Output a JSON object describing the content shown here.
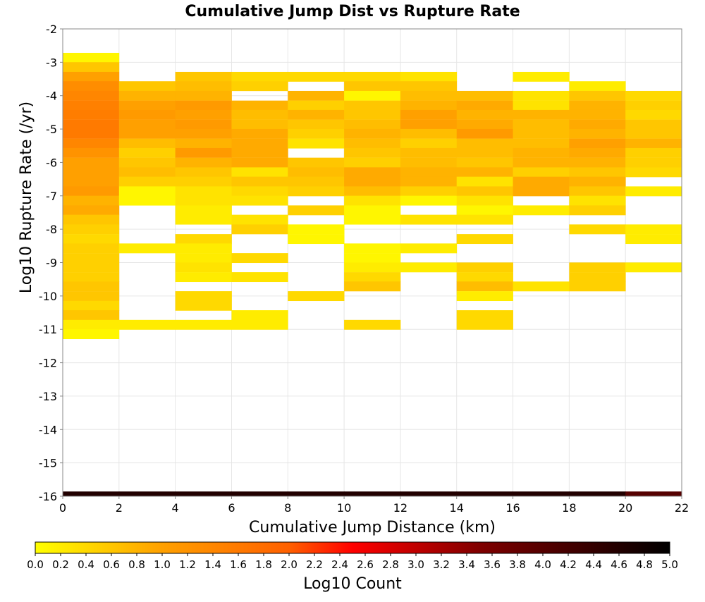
{
  "chart_data": {
    "type": "heatmap",
    "title": "Cumulative Jump Dist vs Rupture Rate",
    "xlabel": "Cumulative Jump Distance (km)",
    "ylabel": "Log10 Rupture Rate (/yr)",
    "xlim": [
      0,
      22
    ],
    "ylim": [
      -16,
      -2
    ],
    "x_ticks": [
      "0",
      "2",
      "4",
      "6",
      "8",
      "10",
      "12",
      "14",
      "16",
      "18",
      "20",
      "22"
    ],
    "y_ticks": [
      "-2",
      "-3",
      "-4",
      "-5",
      "-6",
      "-7",
      "-8",
      "-9",
      "-10",
      "-11",
      "-12",
      "-13",
      "-14",
      "-15",
      "-16"
    ],
    "grid": true,
    "x_bin_edges": [
      0,
      2,
      4,
      6,
      8,
      10,
      12,
      14,
      16,
      18,
      20,
      22
    ],
    "y_bin_size": 0.2857,
    "value_label": "Log10 Count",
    "colorbar": {
      "label": "Log10 Count",
      "range": [
        0,
        5
      ],
      "ticks": [
        "0.0",
        "0.2",
        "0.4",
        "0.6",
        "0.8",
        "1.0",
        "1.2",
        "1.4",
        "1.6",
        "1.8",
        "2.0",
        "2.2",
        "2.4",
        "2.6",
        "2.8",
        "3.0",
        "3.2",
        "3.4",
        "3.6",
        "3.8",
        "4.0",
        "4.2",
        "4.4",
        "4.6",
        "4.8",
        "5.0"
      ],
      "colors": [
        "#ffff00",
        "#ffa000",
        "#ff6000",
        "#ff0000",
        "#800000",
        "#000000"
      ]
    },
    "columns": [
      {
        "x": [
          0,
          2
        ],
        "cells": [
          {
            "y": -2.86,
            "v": 0.1
          },
          {
            "y": -3.14,
            "v": 0.6
          },
          {
            "y": -3.43,
            "v": 1.0
          },
          {
            "y": -3.71,
            "v": 1.3
          },
          {
            "y": -4.0,
            "v": 1.4
          },
          {
            "y": -4.29,
            "v": 1.5
          },
          {
            "y": -4.57,
            "v": 1.55
          },
          {
            "y": -4.86,
            "v": 1.6
          },
          {
            "y": -5.14,
            "v": 1.6
          },
          {
            "y": -5.43,
            "v": 1.4
          },
          {
            "y": -5.71,
            "v": 1.2
          },
          {
            "y": -6.0,
            "v": 1.0
          },
          {
            "y": -6.29,
            "v": 1.0
          },
          {
            "y": -6.57,
            "v": 1.0
          },
          {
            "y": -6.86,
            "v": 1.1
          },
          {
            "y": -7.14,
            "v": 0.8
          },
          {
            "y": -7.43,
            "v": 0.9
          },
          {
            "y": -7.71,
            "v": 0.6
          },
          {
            "y": -8.0,
            "v": 0.5
          },
          {
            "y": -8.29,
            "v": 0.4
          },
          {
            "y": -8.57,
            "v": 0.5
          },
          {
            "y": -8.86,
            "v": 0.5
          },
          {
            "y": -9.14,
            "v": 0.5
          },
          {
            "y": -9.43,
            "v": 0.5
          },
          {
            "y": -9.71,
            "v": 0.6
          },
          {
            "y": -10.0,
            "v": 0.6
          },
          {
            "y": -10.29,
            "v": 0.4
          },
          {
            "y": -10.57,
            "v": 0.6
          },
          {
            "y": -10.86,
            "v": 0.2
          },
          {
            "y": -11.14,
            "v": 0.1
          },
          {
            "y": -16.0,
            "v": 4.6
          }
        ]
      },
      {
        "x": [
          2,
          4
        ],
        "cells": [
          {
            "y": -3.71,
            "v": 0.6
          },
          {
            "y": -4.0,
            "v": 0.8
          },
          {
            "y": -4.29,
            "v": 1.0
          },
          {
            "y": -4.57,
            "v": 1.1
          },
          {
            "y": -4.86,
            "v": 1.0
          },
          {
            "y": -5.14,
            "v": 1.0
          },
          {
            "y": -5.43,
            "v": 0.7
          },
          {
            "y": -5.71,
            "v": 0.5
          },
          {
            "y": -6.0,
            "v": 0.6
          },
          {
            "y": -6.29,
            "v": 0.7
          },
          {
            "y": -6.57,
            "v": 0.5
          },
          {
            "y": -6.86,
            "v": 0.1
          },
          {
            "y": -7.14,
            "v": 0.1
          },
          {
            "y": -8.57,
            "v": 0.2
          },
          {
            "y": -10.86,
            "v": 0.2
          },
          {
            "y": -16.0,
            "v": 4.6
          }
        ]
      },
      {
        "x": [
          4,
          6
        ],
        "cells": [
          {
            "y": -3.43,
            "v": 0.6
          },
          {
            "y": -3.71,
            "v": 0.7
          },
          {
            "y": -4.0,
            "v": 0.8
          },
          {
            "y": -4.29,
            "v": 1.1
          },
          {
            "y": -4.57,
            "v": 1.0
          },
          {
            "y": -4.86,
            "v": 1.1
          },
          {
            "y": -5.14,
            "v": 1.0
          },
          {
            "y": -5.43,
            "v": 0.8
          },
          {
            "y": -5.71,
            "v": 1.1
          },
          {
            "y": -6.0,
            "v": 0.8
          },
          {
            "y": -6.29,
            "v": 0.6
          },
          {
            "y": -6.57,
            "v": 0.5
          },
          {
            "y": -6.86,
            "v": 0.3
          },
          {
            "y": -7.14,
            "v": 0.3
          },
          {
            "y": -7.43,
            "v": 0.2
          },
          {
            "y": -7.71,
            "v": 0.2
          },
          {
            "y": -8.29,
            "v": 0.4
          },
          {
            "y": -8.57,
            "v": 0.2
          },
          {
            "y": -8.86,
            "v": 0.2
          },
          {
            "y": -9.14,
            "v": 0.3
          },
          {
            "y": -9.43,
            "v": 0.2
          },
          {
            "y": -10.0,
            "v": 0.4
          },
          {
            "y": -10.29,
            "v": 0.4
          },
          {
            "y": -10.86,
            "v": 0.2
          },
          {
            "y": -16.0,
            "v": 4.6
          }
        ]
      },
      {
        "x": [
          6,
          8
        ],
        "cells": [
          {
            "y": -3.43,
            "v": 0.4
          },
          {
            "y": -3.71,
            "v": 0.5
          },
          {
            "y": -4.29,
            "v": 0.8
          },
          {
            "y": -4.57,
            "v": 0.7
          },
          {
            "y": -4.86,
            "v": 0.7
          },
          {
            "y": -5.14,
            "v": 0.9
          },
          {
            "y": -5.43,
            "v": 0.9
          },
          {
            "y": -5.71,
            "v": 0.9
          },
          {
            "y": -6.0,
            "v": 0.9
          },
          {
            "y": -6.29,
            "v": 0.3
          },
          {
            "y": -6.57,
            "v": 0.6
          },
          {
            "y": -6.86,
            "v": 0.4
          },
          {
            "y": -7.14,
            "v": 0.3
          },
          {
            "y": -7.71,
            "v": 0.3
          },
          {
            "y": -8.0,
            "v": 0.5
          },
          {
            "y": -8.86,
            "v": 0.4
          },
          {
            "y": -9.43,
            "v": 0.3
          },
          {
            "y": -10.57,
            "v": 0.2
          },
          {
            "y": -10.86,
            "v": 0.2
          },
          {
            "y": -16.0,
            "v": 4.6
          }
        ]
      },
      {
        "x": [
          8,
          10
        ],
        "cells": [
          {
            "y": -3.43,
            "v": 0.4
          },
          {
            "y": -4.0,
            "v": 0.8
          },
          {
            "y": -4.29,
            "v": 0.5
          },
          {
            "y": -4.57,
            "v": 0.8
          },
          {
            "y": -4.86,
            "v": 0.6
          },
          {
            "y": -5.14,
            "v": 0.5
          },
          {
            "y": -5.43,
            "v": 0.3
          },
          {
            "y": -6.0,
            "v": 0.6
          },
          {
            "y": -6.29,
            "v": 0.7
          },
          {
            "y": -6.57,
            "v": 0.6
          },
          {
            "y": -6.86,
            "v": 0.5
          },
          {
            "y": -7.43,
            "v": 0.5
          },
          {
            "y": -8.0,
            "v": 0.1
          },
          {
            "y": -8.29,
            "v": 0.1
          },
          {
            "y": -10.0,
            "v": 0.4
          },
          {
            "y": -16.0,
            "v": 4.6
          }
        ]
      },
      {
        "x": [
          10,
          12
        ],
        "cells": [
          {
            "y": -3.43,
            "v": 0.4
          },
          {
            "y": -3.71,
            "v": 0.6
          },
          {
            "y": -4.0,
            "v": 0.1
          },
          {
            "y": -4.29,
            "v": 0.6
          },
          {
            "y": -4.57,
            "v": 0.6
          },
          {
            "y": -4.86,
            "v": 0.7
          },
          {
            "y": -5.14,
            "v": 0.8
          },
          {
            "y": -5.43,
            "v": 0.7
          },
          {
            "y": -5.71,
            "v": 0.6
          },
          {
            "y": -6.0,
            "v": 0.5
          },
          {
            "y": -6.29,
            "v": 0.9
          },
          {
            "y": -6.57,
            "v": 0.9
          },
          {
            "y": -6.86,
            "v": 0.7
          },
          {
            "y": -7.14,
            "v": 0.3
          },
          {
            "y": -7.43,
            "v": 0.1
          },
          {
            "y": -7.71,
            "v": 0.1
          },
          {
            "y": -8.57,
            "v": 0.1
          },
          {
            "y": -8.86,
            "v": 0.1
          },
          {
            "y": -9.14,
            "v": 0.2
          },
          {
            "y": -9.43,
            "v": 0.4
          },
          {
            "y": -9.71,
            "v": 0.6
          },
          {
            "y": -10.86,
            "v": 0.4
          },
          {
            "y": -16.0,
            "v": 4.6
          }
        ]
      },
      {
        "x": [
          12,
          14
        ],
        "cells": [
          {
            "y": -3.43,
            "v": 0.3
          },
          {
            "y": -3.71,
            "v": 0.6
          },
          {
            "y": -4.0,
            "v": 0.7
          },
          {
            "y": -4.29,
            "v": 0.8
          },
          {
            "y": -4.57,
            "v": 1.0
          },
          {
            "y": -4.86,
            "v": 1.0
          },
          {
            "y": -5.14,
            "v": 0.7
          },
          {
            "y": -5.43,
            "v": 0.5
          },
          {
            "y": -5.71,
            "v": 0.7
          },
          {
            "y": -6.0,
            "v": 0.7
          },
          {
            "y": -6.29,
            "v": 0.8
          },
          {
            "y": -6.57,
            "v": 0.8
          },
          {
            "y": -6.86,
            "v": 0.5
          },
          {
            "y": -7.14,
            "v": 0.1
          },
          {
            "y": -7.71,
            "v": 0.3
          },
          {
            "y": -8.57,
            "v": 0.2
          },
          {
            "y": -9.14,
            "v": 0.2
          },
          {
            "y": -16.0,
            "v": 4.6
          }
        ]
      },
      {
        "x": [
          14,
          16
        ],
        "cells": [
          {
            "y": -4.0,
            "v": 0.7
          },
          {
            "y": -4.29,
            "v": 0.9
          },
          {
            "y": -4.57,
            "v": 0.8
          },
          {
            "y": -4.86,
            "v": 0.9
          },
          {
            "y": -5.14,
            "v": 1.1
          },
          {
            "y": -5.43,
            "v": 0.7
          },
          {
            "y": -5.71,
            "v": 0.7
          },
          {
            "y": -6.0,
            "v": 0.6
          },
          {
            "y": -6.29,
            "v": 0.8
          },
          {
            "y": -6.57,
            "v": 0.3
          },
          {
            "y": -6.86,
            "v": 0.6
          },
          {
            "y": -7.14,
            "v": 0.3
          },
          {
            "y": -7.43,
            "v": 0.1
          },
          {
            "y": -7.71,
            "v": 0.3
          },
          {
            "y": -8.29,
            "v": 0.4
          },
          {
            "y": -9.14,
            "v": 0.5
          },
          {
            "y": -9.43,
            "v": 0.4
          },
          {
            "y": -9.71,
            "v": 0.7
          },
          {
            "y": -10.0,
            "v": 0.2
          },
          {
            "y": -10.57,
            "v": 0.4
          },
          {
            "y": -10.86,
            "v": 0.4
          },
          {
            "y": -16.0,
            "v": 4.6
          }
        ]
      },
      {
        "x": [
          16,
          18
        ],
        "cells": [
          {
            "y": -3.43,
            "v": 0.2
          },
          {
            "y": -4.0,
            "v": 0.3
          },
          {
            "y": -4.29,
            "v": 0.3
          },
          {
            "y": -4.57,
            "v": 0.8
          },
          {
            "y": -4.86,
            "v": 0.7
          },
          {
            "y": -5.14,
            "v": 0.7
          },
          {
            "y": -5.43,
            "v": 0.7
          },
          {
            "y": -5.71,
            "v": 0.8
          },
          {
            "y": -6.0,
            "v": 0.8
          },
          {
            "y": -6.29,
            "v": 0.5
          },
          {
            "y": -6.57,
            "v": 0.9
          },
          {
            "y": -6.86,
            "v": 0.9
          },
          {
            "y": -7.43,
            "v": 0.2
          },
          {
            "y": -9.71,
            "v": 0.3
          },
          {
            "y": -16.0,
            "v": 4.6
          }
        ]
      },
      {
        "x": [
          18,
          20
        ],
        "cells": [
          {
            "y": -3.71,
            "v": 0.2
          },
          {
            "y": -4.0,
            "v": 0.6
          },
          {
            "y": -4.29,
            "v": 0.8
          },
          {
            "y": -4.57,
            "v": 0.8
          },
          {
            "y": -4.86,
            "v": 0.9
          },
          {
            "y": -5.14,
            "v": 0.8
          },
          {
            "y": -5.43,
            "v": 1.0
          },
          {
            "y": -5.71,
            "v": 0.9
          },
          {
            "y": -6.0,
            "v": 0.8
          },
          {
            "y": -6.29,
            "v": 0.6
          },
          {
            "y": -6.57,
            "v": 0.8
          },
          {
            "y": -6.86,
            "v": 0.6
          },
          {
            "y": -7.14,
            "v": 0.3
          },
          {
            "y": -7.43,
            "v": 0.5
          },
          {
            "y": -8.0,
            "v": 0.4
          },
          {
            "y": -9.14,
            "v": 0.5
          },
          {
            "y": -9.43,
            "v": 0.5
          },
          {
            "y": -9.71,
            "v": 0.5
          },
          {
            "y": -16.0,
            "v": 4.6
          }
        ]
      },
      {
        "x": [
          20,
          22
        ],
        "cells": [
          {
            "y": -4.0,
            "v": 0.4
          },
          {
            "y": -4.29,
            "v": 0.5
          },
          {
            "y": -4.57,
            "v": 0.4
          },
          {
            "y": -4.86,
            "v": 0.6
          },
          {
            "y": -5.14,
            "v": 0.6
          },
          {
            "y": -5.43,
            "v": 0.8
          },
          {
            "y": -5.71,
            "v": 0.5
          },
          {
            "y": -6.0,
            "v": 0.5
          },
          {
            "y": -6.29,
            "v": 0.4
          },
          {
            "y": -6.86,
            "v": 0.2
          },
          {
            "y": -8.0,
            "v": 0.2
          },
          {
            "y": -8.29,
            "v": 0.2
          },
          {
            "y": -9.14,
            "v": 0.2
          },
          {
            "y": -16.0,
            "v": 4.0
          }
        ]
      }
    ]
  }
}
